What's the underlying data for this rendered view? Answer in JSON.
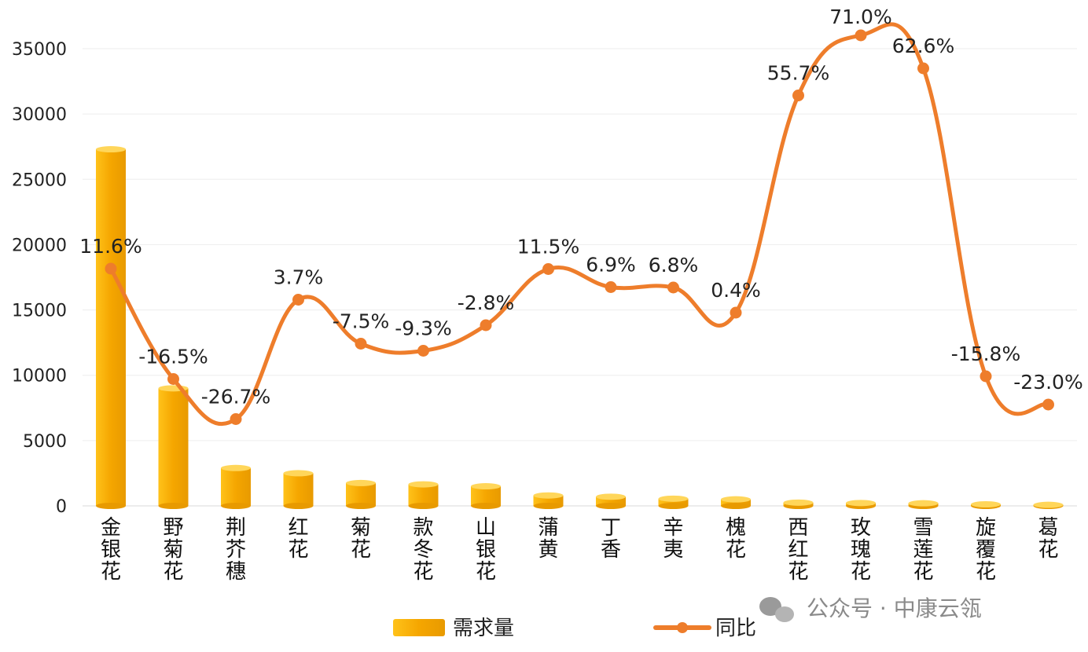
{
  "chart_data": {
    "type": "bar",
    "categories": [
      "金银花",
      "野菊花",
      "荆芥穗",
      "红花",
      "菊花",
      "款冬花",
      "山银花",
      "蒲黄",
      "丁香",
      "辛夷",
      "槐花",
      "西红花",
      "玫瑰花",
      "雪莲花",
      "旋覆花",
      "葛花"
    ],
    "series": [
      {
        "name": "需求量",
        "type": "bar",
        "values": [
          27300,
          9000,
          2900,
          2500,
          1750,
          1650,
          1500,
          800,
          700,
          550,
          500,
          250,
          220,
          200,
          120,
          80
        ]
      },
      {
        "name": "同比",
        "type": "line",
        "values": [
          11.6,
          -16.5,
          -26.7,
          3.7,
          -7.5,
          -9.3,
          -2.8,
          11.5,
          6.9,
          6.8,
          0.4,
          55.7,
          71.0,
          62.6,
          -15.8,
          -23.0
        ],
        "labels": [
          "11.6%",
          "-16.5%",
          "-26.7%",
          "3.7%",
          "-7.5%",
          "-9.3%",
          "-2.8%",
          "11.5%",
          "6.9%",
          "6.8%",
          "0.4%",
          "55.7%",
          "71.0%",
          "62.6%",
          "-15.8%",
          "-23.0%"
        ]
      }
    ],
    "ylim": [
      0,
      35000
    ],
    "yticks": [
      "0",
      "5000",
      "10000",
      "15000",
      "20000",
      "25000",
      "30000",
      "35000"
    ],
    "legend_position": "bottom",
    "grid": true,
    "colors": {
      "bar": "#F5A800",
      "line": "#EE7D2B"
    }
  },
  "watermark": "公众号 · 中康云瓴"
}
